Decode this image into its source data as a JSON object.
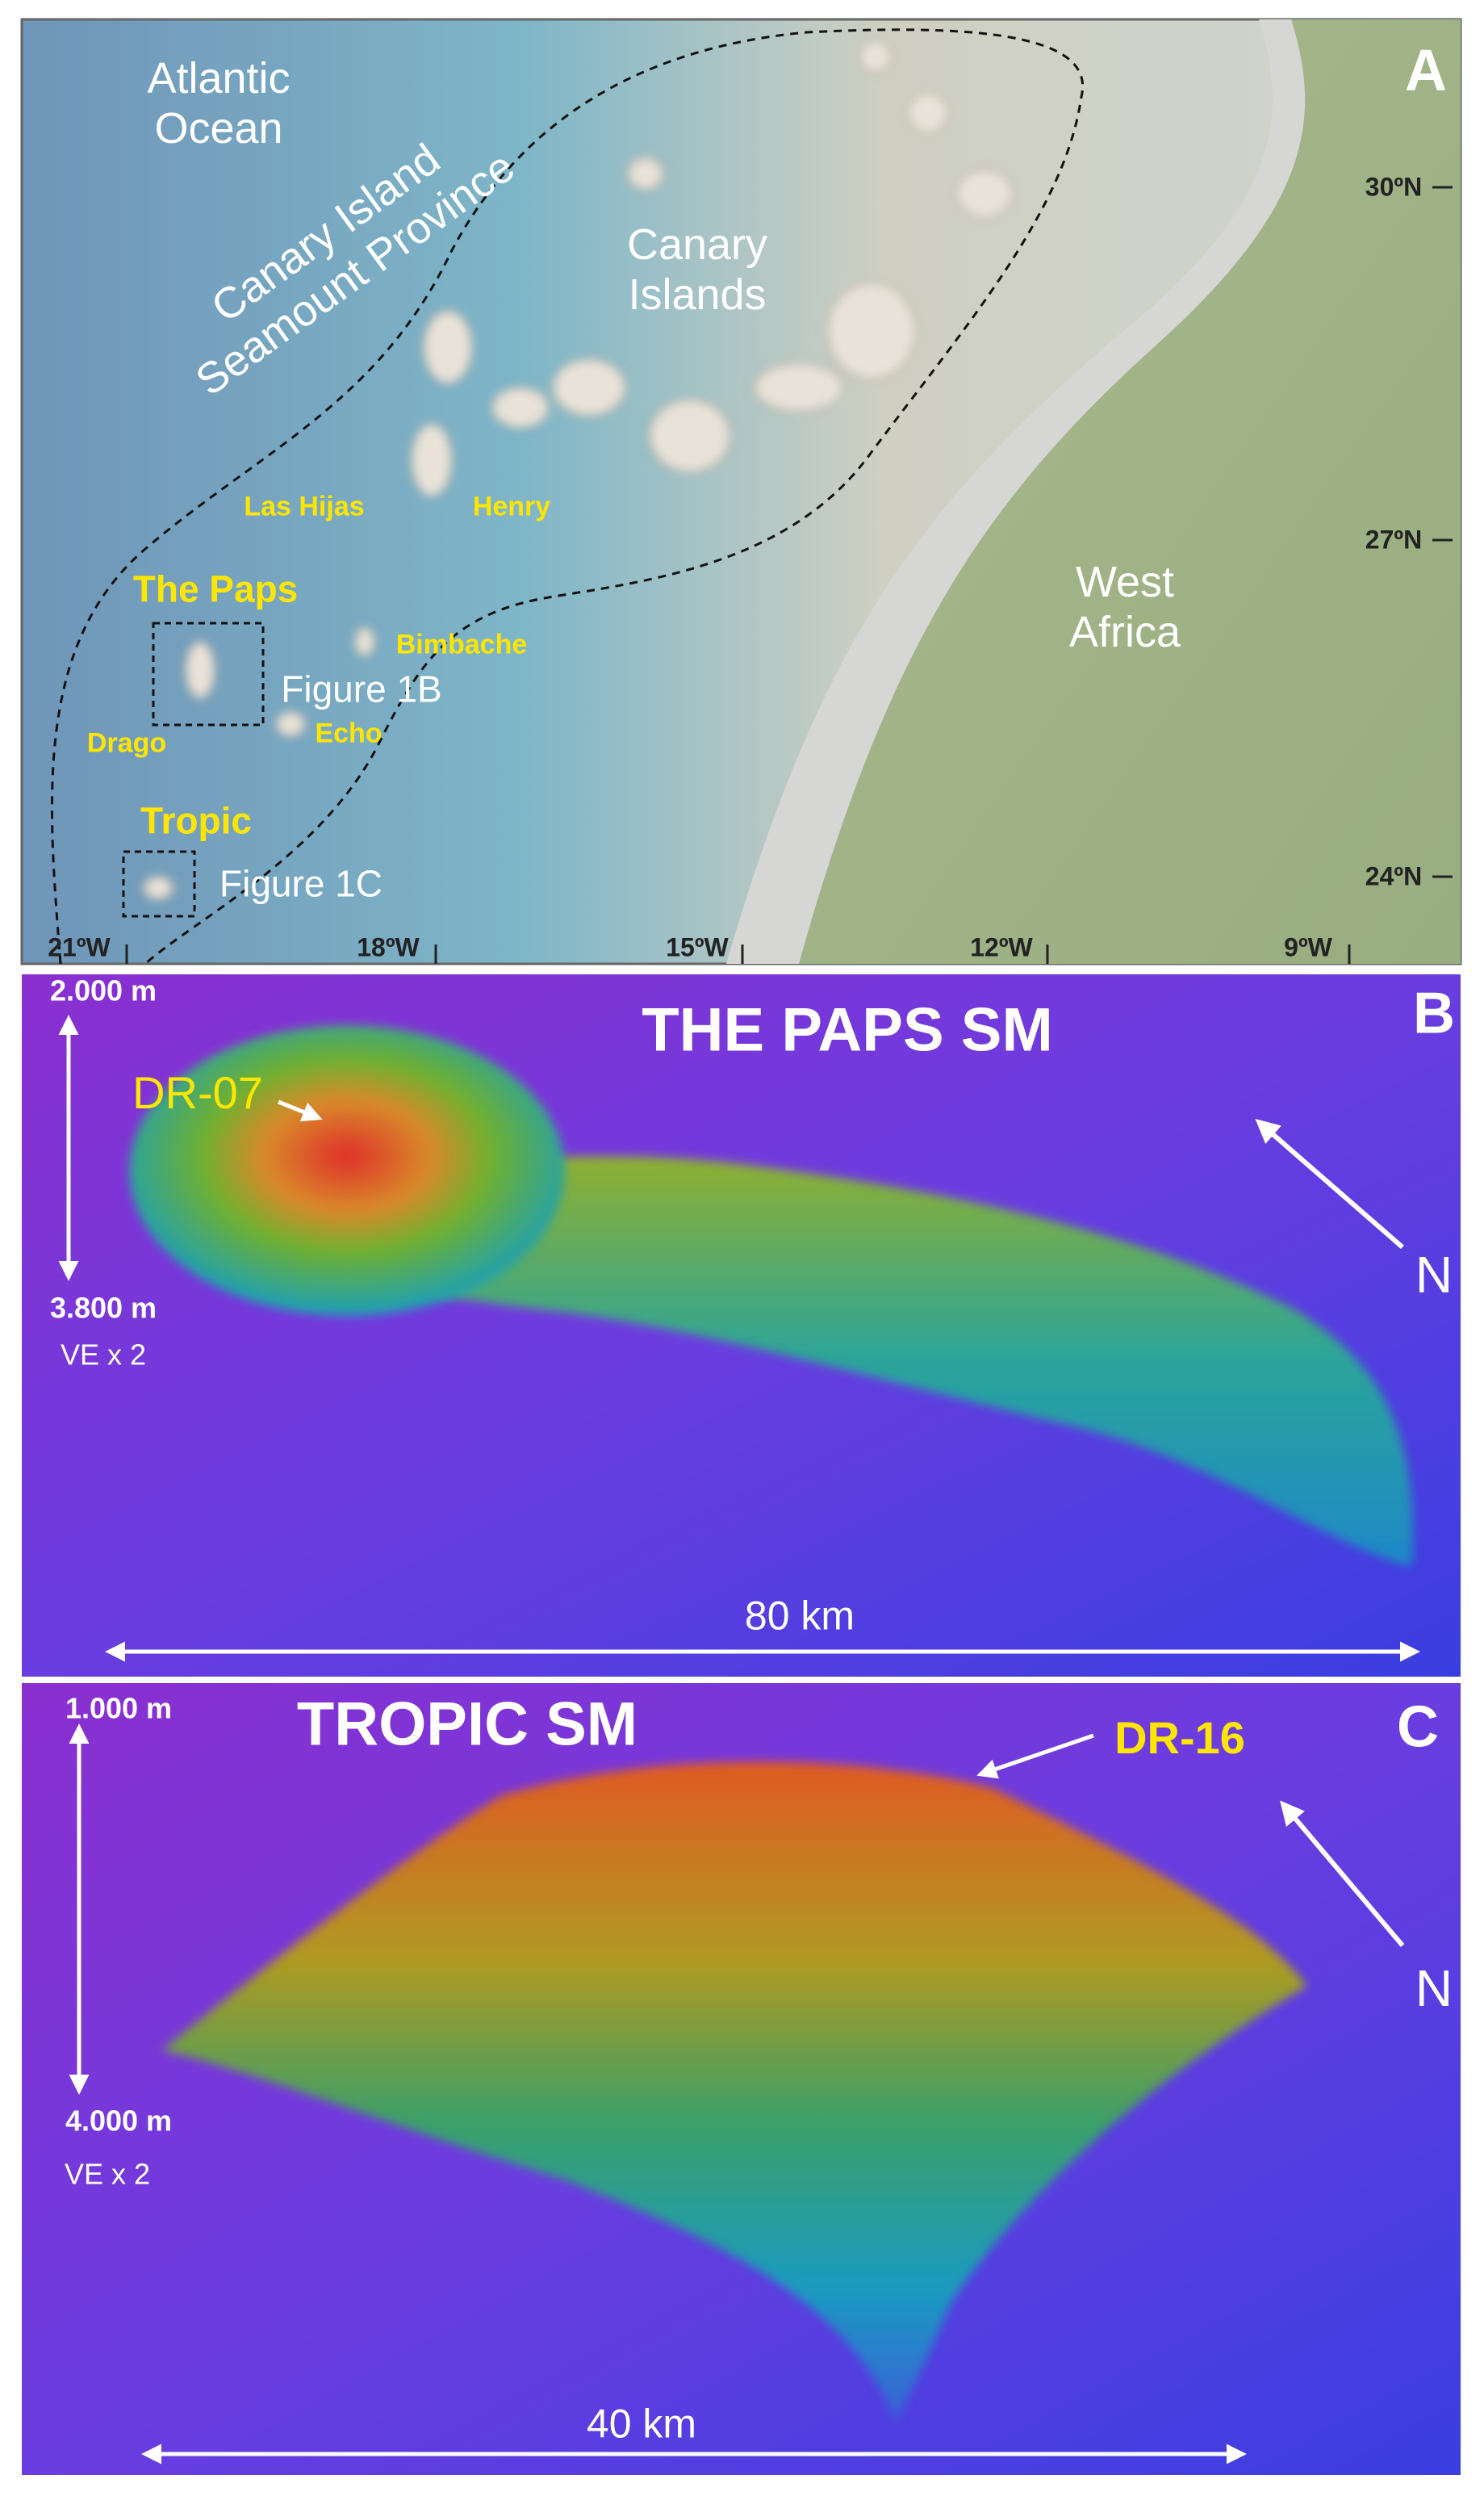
{
  "panel_a": {
    "letter": "A",
    "ocean": [
      "Atlantic",
      "Ocean"
    ],
    "province": [
      "Canary Island",
      "Seamount Province"
    ],
    "islands": [
      "Canary",
      "Islands"
    ],
    "continent": [
      "West",
      "Africa"
    ],
    "seamounts": [
      "Las Hijas",
      "Henry",
      "The Paps",
      "Bimbache",
      "Drago",
      "Echo",
      "Tropic"
    ],
    "figure_refs": [
      "Figure 1B",
      "Figure 1C"
    ],
    "lat_ticks": [
      "30ºN",
      "27ºN",
      "24ºN"
    ],
    "lon_ticks": [
      "21ºW",
      "18ºW",
      "15ºW",
      "12ºW",
      "9ºW"
    ]
  },
  "panel_b": {
    "letter": "B",
    "title": "THE PAPS SM",
    "sample": "DR-07",
    "depth_top": "2.000  m",
    "depth_bottom": "3.800  m",
    "exaggeration": "VE x 2",
    "north": "N",
    "scale": "80 km"
  },
  "panel_c": {
    "letter": "C",
    "title": "TROPIC SM",
    "sample": "DR-16",
    "depth_top": "1.000  m",
    "depth_bottom": "4.000  m",
    "exaggeration": "VE x 2",
    "north": "N",
    "scale": "40 km"
  }
}
